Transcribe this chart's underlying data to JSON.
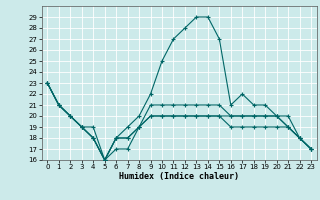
{
  "xlabel": "Humidex (Indice chaleur)",
  "xlim": [
    -0.5,
    23.5
  ],
  "ylim": [
    16,
    30
  ],
  "yticks": [
    16,
    17,
    18,
    19,
    20,
    21,
    22,
    23,
    24,
    25,
    26,
    27,
    28,
    29
  ],
  "xticks": [
    0,
    1,
    2,
    3,
    4,
    5,
    6,
    7,
    8,
    9,
    10,
    11,
    12,
    13,
    14,
    15,
    16,
    17,
    18,
    19,
    20,
    21,
    22,
    23
  ],
  "background_color": "#cceaea",
  "grid_color": "#ffffff",
  "line_color": "#006666",
  "lines": [
    [
      23,
      21,
      20,
      19,
      18,
      16,
      17,
      17,
      19,
      21,
      21,
      21,
      21,
      21,
      21,
      21,
      20,
      20,
      20,
      20,
      20,
      19,
      18,
      17
    ],
    [
      23,
      21,
      20,
      19,
      19,
      16,
      18,
      19,
      20,
      22,
      25,
      27,
      28,
      29,
      29,
      27,
      21,
      22,
      21,
      21,
      20,
      19,
      18,
      17
    ],
    [
      23,
      21,
      20,
      19,
      18,
      16,
      18,
      18,
      19,
      20,
      20,
      20,
      20,
      20,
      20,
      20,
      19,
      19,
      19,
      19,
      19,
      19,
      18,
      17
    ],
    [
      23,
      21,
      20,
      19,
      18,
      16,
      18,
      18,
      19,
      20,
      20,
      20,
      20,
      20,
      20,
      20,
      20,
      20,
      20,
      20,
      20,
      20,
      18,
      17
    ]
  ]
}
